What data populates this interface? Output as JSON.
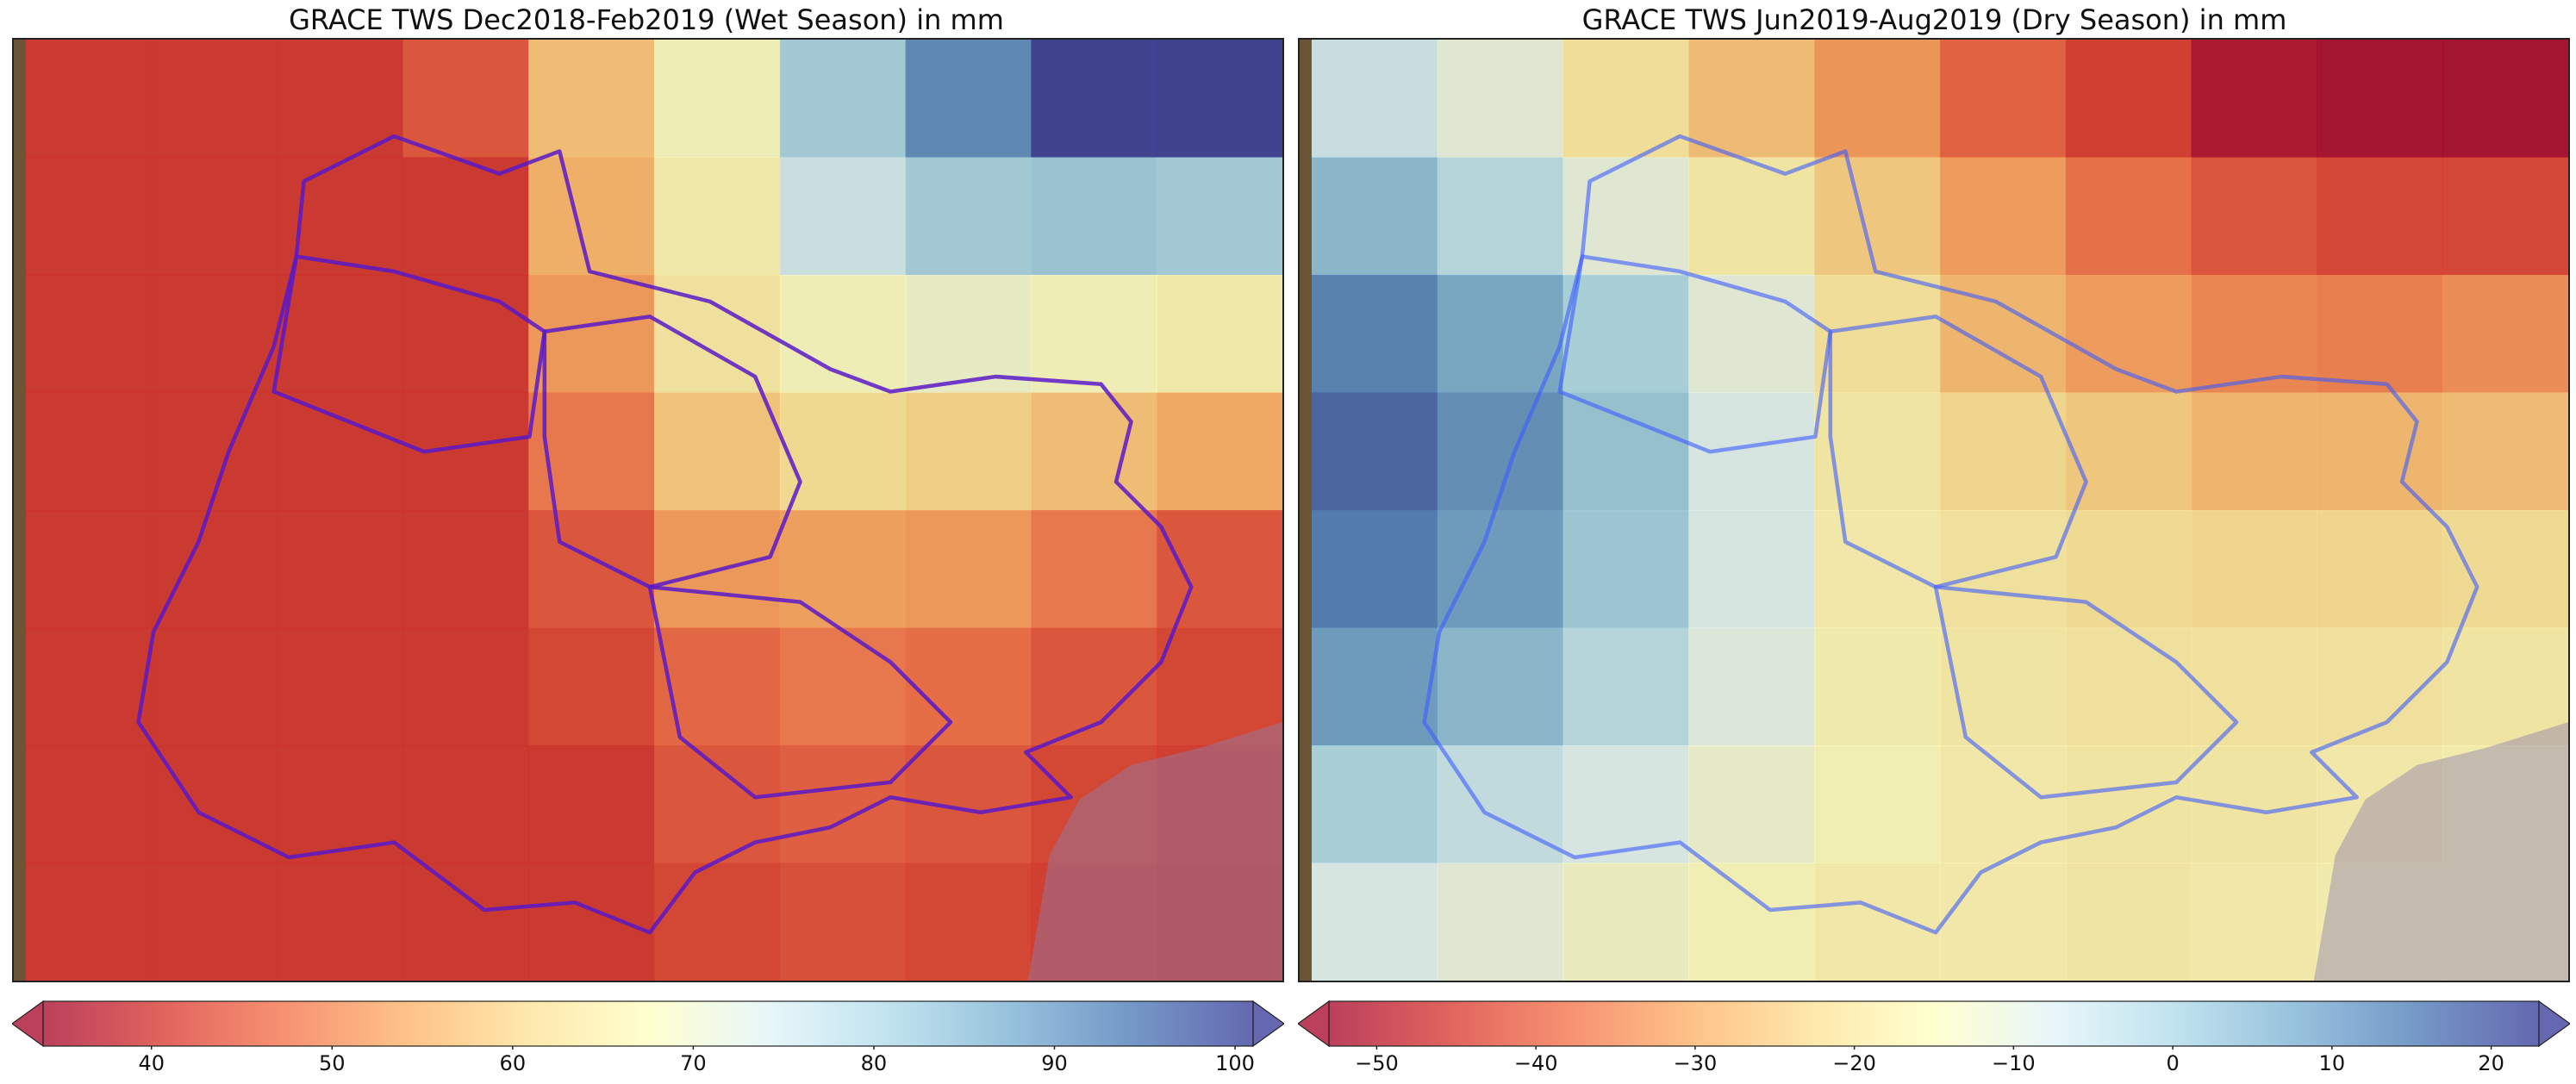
{
  "panels": [
    {
      "title": "GRACE TWS Dec2018-Feb2019 (Wet Season) in mm",
      "colorbar": {
        "min": 34,
        "max": 101,
        "ticks": [
          40,
          50,
          60,
          70,
          80,
          90,
          100
        ],
        "tick_labels": [
          "40",
          "50",
          "60",
          "70",
          "80",
          "90",
          "100"
        ],
        "extend": "both",
        "colormap": "RdYlBu"
      },
      "grid": [
        [
          40,
          40,
          40,
          44,
          57,
          68,
          82,
          92,
          101,
          101
        ],
        [
          40,
          40,
          40,
          40,
          55,
          66,
          76,
          82,
          83,
          82
        ],
        [
          40,
          40,
          40,
          40,
          52,
          64,
          68,
          70,
          68,
          66
        ],
        [
          40,
          40,
          40,
          40,
          48,
          58,
          62,
          60,
          57,
          54
        ],
        [
          40,
          40,
          40,
          40,
          44,
          52,
          53,
          52,
          48,
          44
        ],
        [
          40,
          40,
          40,
          40,
          42,
          46,
          48,
          47,
          44,
          42
        ],
        [
          40,
          40,
          40,
          40,
          40,
          44,
          45,
          44,
          42,
          41
        ],
        [
          40,
          40,
          40,
          40,
          40,
          42,
          43,
          42,
          41,
          40
        ]
      ]
    },
    {
      "title": "GRACE TWS Jun2019-Aug2019 (Dry Season) in mm",
      "colorbar": {
        "min": -53,
        "max": 23,
        "ticks": [
          -50,
          -40,
          -30,
          -20,
          -10,
          0,
          10,
          20
        ],
        "tick_labels": [
          "−50",
          "−40",
          "−30",
          "−20",
          "−10",
          "0",
          "10",
          "20"
        ],
        "extend": "both",
        "colormap": "RdYlBu"
      },
      "grid": [
        [
          -5,
          -10,
          -20,
          -27,
          -33,
          -40,
          -45,
          -52,
          -53,
          -53
        ],
        [
          5,
          -2,
          -10,
          -18,
          -25,
          -32,
          -38,
          -42,
          -44,
          -44
        ],
        [
          14,
          8,
          0,
          -10,
          -20,
          -28,
          -32,
          -35,
          -36,
          -34
        ],
        [
          18,
          12,
          3,
          -8,
          -18,
          -22,
          -25,
          -28,
          -28,
          -27
        ],
        [
          15,
          10,
          2,
          -8,
          -17,
          -19,
          -21,
          -22,
          -22,
          -21
        ],
        [
          10,
          5,
          -2,
          -9,
          -16,
          -18,
          -19,
          -19,
          -19,
          -18
        ],
        [
          0,
          -4,
          -8,
          -12,
          -15,
          -17,
          -18,
          -18,
          -17,
          -16
        ],
        [
          -8,
          -10,
          -13,
          -15,
          -17,
          -17,
          -18,
          -17,
          -16,
          -16
        ]
      ]
    }
  ],
  "colors": {
    "basin_outline_left": "#5a19c8",
    "basin_outline_right": "#3c5cff",
    "sea": "#8f7fae",
    "land_edge": "#6b5536"
  }
}
